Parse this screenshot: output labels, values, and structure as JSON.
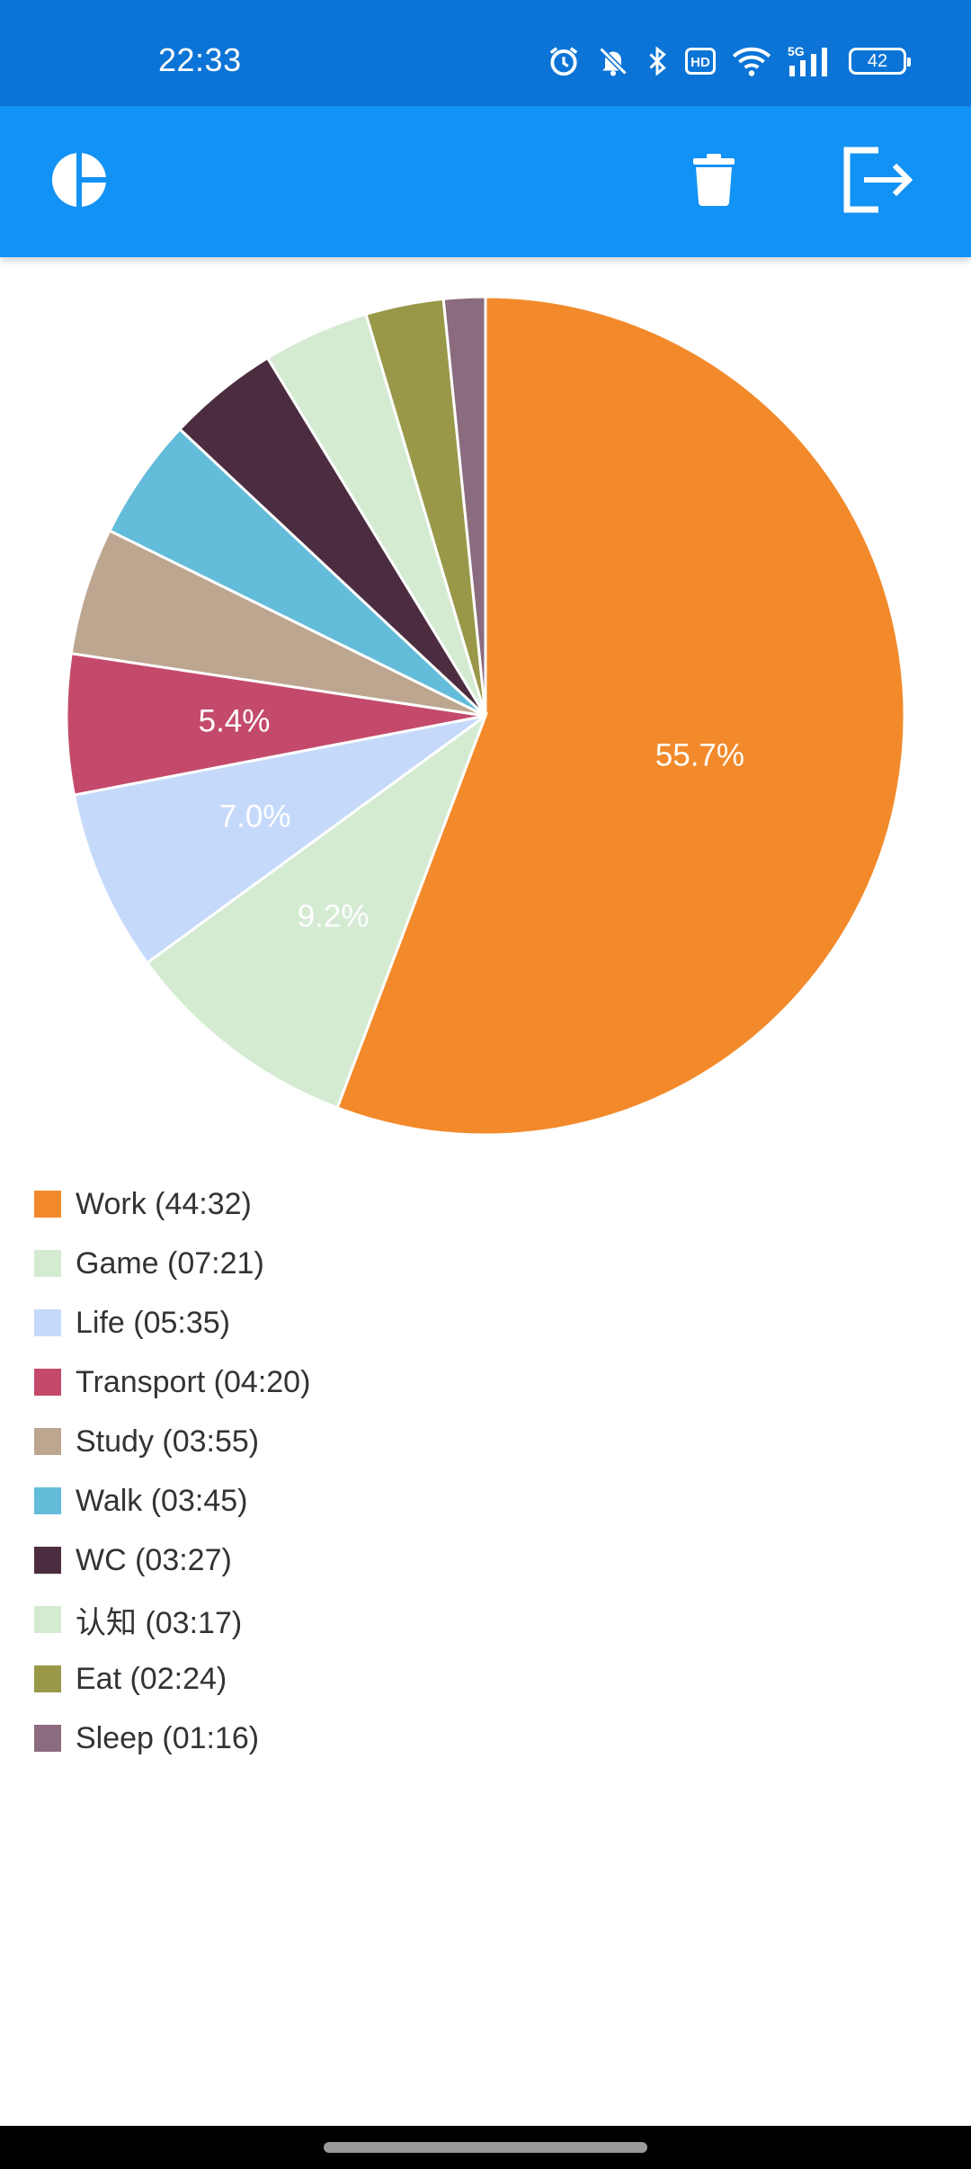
{
  "status_bar": {
    "time": "22:33",
    "battery": "42",
    "network": "5G",
    "hd": "HD",
    "icons": [
      "alarm-icon",
      "bell-muted-icon",
      "bluetooth-icon",
      "hd-icon",
      "wifi-icon",
      "signal-icon",
      "battery-icon"
    ]
  },
  "app_bar": {
    "icons": [
      "pie-chart-icon",
      "trash-icon",
      "logout-icon"
    ],
    "background": "#1392f5"
  },
  "chart_data": {
    "type": "pie",
    "title": "",
    "start_angle_deg": 0,
    "direction": "clockwise",
    "labels": [
      "Work (44:32)",
      "Game (07:21)",
      "Life (05:35)",
      "Transport (04:20)",
      "Study (03:55)",
      "Walk (03:45)",
      "WC (03:27)",
      "认知 (03:17)",
      "Eat (02:24)",
      "Sleep (01:16)"
    ],
    "values": [
      55.7,
      9.2,
      7.0,
      5.4,
      4.9,
      4.7,
      4.3,
      4.1,
      3.0,
      1.6
    ],
    "data_labels": [
      "55.7%",
      "9.2%",
      "7.0%",
      "5.4%",
      "",
      "",
      "",
      "",
      "",
      ""
    ],
    "colors": [
      "#f28a2b",
      "#d4ebd2",
      "#c5d9fa",
      "#c44a6b",
      "#bda690",
      "#63bcd9",
      "#4c2d40",
      "#d4ebd2",
      "#999849",
      "#8a6c7e"
    ],
    "legend": "bottom-left"
  }
}
